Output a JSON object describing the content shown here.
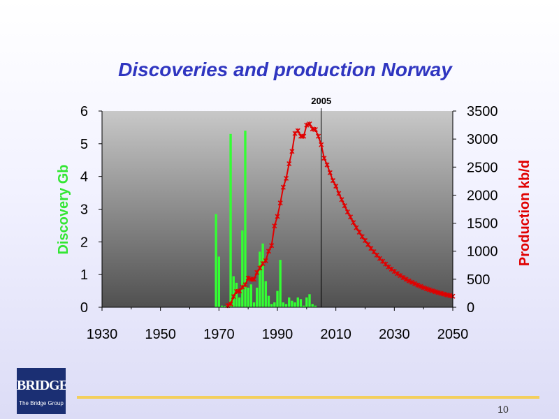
{
  "slide": {
    "title": "Discoveries and production Norway",
    "page_number": "10",
    "logo": {
      "main_text": "BRIDGE",
      "sub_text": "The Bridge Group"
    }
  },
  "chart_data": {
    "type": "bar+line",
    "title": "Discoveries and production Norway",
    "xlim": [
      1930,
      2050
    ],
    "x_ticks": [
      "1930",
      "1950",
      "1970",
      "1990",
      "2010",
      "2030",
      "2050"
    ],
    "left_axis": {
      "label": "Discovery Gb",
      "ylim": [
        0,
        6
      ],
      "ticks": [
        "0",
        "1",
        "2",
        "3",
        "4",
        "5",
        "6"
      ]
    },
    "right_axis": {
      "label": "Production kb/d",
      "ylim": [
        0,
        3500
      ],
      "ticks": [
        "0",
        "500",
        "1000",
        "1500",
        "2000",
        "2500",
        "3000",
        "3500"
      ]
    },
    "reference_line": {
      "x": 2005,
      "label": "2005"
    },
    "colors": {
      "discovery": "#33ff33",
      "production": "#e00000",
      "plot_top": "#c8c8c8",
      "plot_bottom": "#505050"
    },
    "discovery_series": {
      "axis": "left",
      "points": [
        [
          1969,
          2.85
        ],
        [
          1970,
          1.55
        ],
        [
          1971,
          0.05
        ],
        [
          1972,
          0.04
        ],
        [
          1973,
          0.08
        ],
        [
          1974,
          5.3
        ],
        [
          1975,
          0.95
        ],
        [
          1976,
          0.75
        ],
        [
          1977,
          0.3
        ],
        [
          1978,
          2.35
        ],
        [
          1979,
          5.4
        ],
        [
          1980,
          0.6
        ],
        [
          1981,
          0.7
        ],
        [
          1982,
          0.15
        ],
        [
          1983,
          0.6
        ],
        [
          1984,
          1.7
        ],
        [
          1985,
          1.95
        ],
        [
          1986,
          0.8
        ],
        [
          1987,
          0.35
        ],
        [
          1988,
          0.1
        ],
        [
          1989,
          0.15
        ],
        [
          1990,
          0.5
        ],
        [
          1991,
          1.45
        ],
        [
          1992,
          0.15
        ],
        [
          1993,
          0.1
        ],
        [
          1994,
          0.3
        ],
        [
          1995,
          0.2
        ],
        [
          1996,
          0.15
        ],
        [
          1997,
          0.3
        ],
        [
          1998,
          0.25
        ],
        [
          1999,
          0.05
        ],
        [
          2000,
          0.3
        ],
        [
          2001,
          0.4
        ],
        [
          2002,
          0.1
        ],
        [
          2003,
          0.05
        ]
      ]
    },
    "production_series": {
      "axis": "right",
      "points": [
        [
          1973,
          30
        ],
        [
          1974,
          60
        ],
        [
          1975,
          190
        ],
        [
          1976,
          280
        ],
        [
          1977,
          290
        ],
        [
          1978,
          360
        ],
        [
          1979,
          400
        ],
        [
          1980,
          520
        ],
        [
          1981,
          500
        ],
        [
          1982,
          500
        ],
        [
          1983,
          620
        ],
        [
          1984,
          700
        ],
        [
          1985,
          780
        ],
        [
          1986,
          830
        ],
        [
          1987,
          1000
        ],
        [
          1988,
          1100
        ],
        [
          1989,
          1450
        ],
        [
          1990,
          1620
        ],
        [
          1991,
          1860
        ],
        [
          1992,
          2140
        ],
        [
          1993,
          2300
        ],
        [
          1994,
          2560
        ],
        [
          1995,
          2780
        ],
        [
          1996,
          3100
        ],
        [
          1997,
          3150
        ],
        [
          1998,
          3050
        ],
        [
          1999,
          3050
        ],
        [
          2000,
          3250
        ],
        [
          2001,
          3270
        ],
        [
          2002,
          3180
        ],
        [
          2003,
          3170
        ],
        [
          2004,
          3050
        ],
        [
          2005,
          2900
        ],
        [
          2006,
          2660
        ],
        [
          2007,
          2540
        ],
        [
          2008,
          2400
        ],
        [
          2009,
          2260
        ],
        [
          2010,
          2160
        ],
        [
          2011,
          2030
        ],
        [
          2012,
          1920
        ],
        [
          2013,
          1810
        ],
        [
          2014,
          1700
        ],
        [
          2015,
          1610
        ],
        [
          2016,
          1510
        ],
        [
          2017,
          1420
        ],
        [
          2018,
          1340
        ],
        [
          2019,
          1260
        ],
        [
          2020,
          1190
        ],
        [
          2021,
          1120
        ],
        [
          2022,
          1050
        ],
        [
          2023,
          990
        ],
        [
          2024,
          930
        ],
        [
          2025,
          870
        ],
        [
          2026,
          820
        ],
        [
          2027,
          770
        ],
        [
          2028,
          720
        ],
        [
          2029,
          680
        ],
        [
          2030,
          640
        ],
        [
          2031,
          600
        ],
        [
          2032,
          565
        ],
        [
          2033,
          530
        ],
        [
          2034,
          500
        ],
        [
          2035,
          470
        ],
        [
          2036,
          445
        ],
        [
          2037,
          420
        ],
        [
          2038,
          395
        ],
        [
          2039,
          372
        ],
        [
          2040,
          350
        ],
        [
          2041,
          330
        ],
        [
          2042,
          312
        ],
        [
          2043,
          294
        ],
        [
          2044,
          278
        ],
        [
          2045,
          262
        ],
        [
          2046,
          248
        ],
        [
          2047,
          234
        ],
        [
          2048,
          220
        ],
        [
          2049,
          208
        ],
        [
          2050,
          196
        ]
      ]
    }
  }
}
